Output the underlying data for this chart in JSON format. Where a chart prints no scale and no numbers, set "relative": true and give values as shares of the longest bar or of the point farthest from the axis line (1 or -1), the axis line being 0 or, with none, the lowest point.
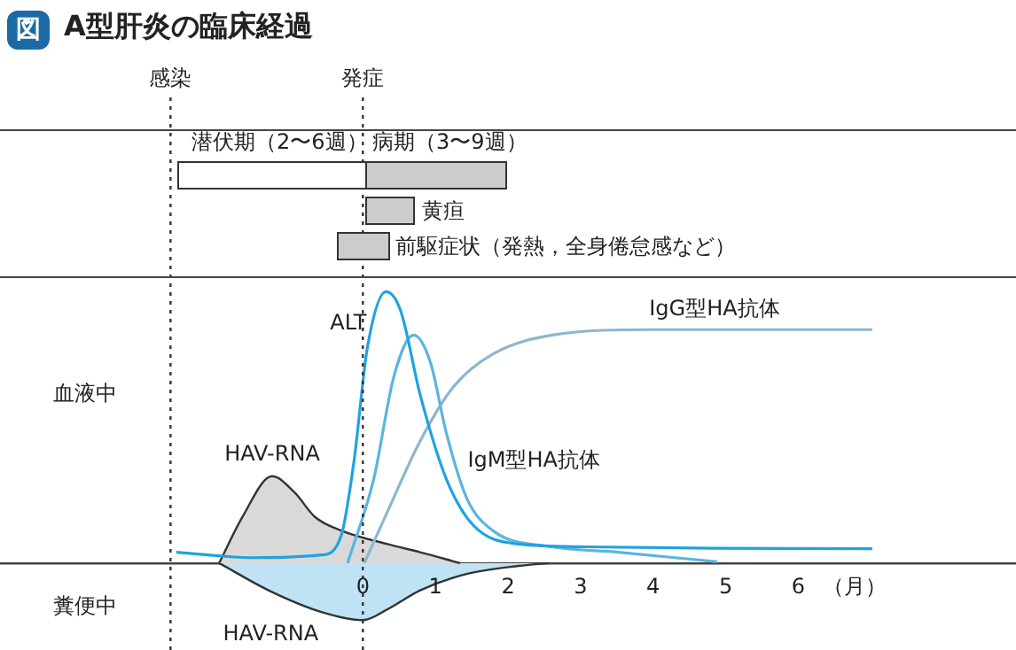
{
  "chart_data": {
    "type": "line",
    "relative": true,
    "title": "A型肝炎の臨床経過",
    "xlabel": "（月）",
    "xlim": [
      -5,
      9
    ],
    "xticks": [
      0,
      1,
      2,
      3,
      4,
      5,
      6
    ],
    "grid": false,
    "legend": false,
    "marker": "none",
    "annotations": [
      "図",
      "潜伏期（2〜6週）",
      "病期（3〜9週）",
      "黄疸",
      "前駆症状（発熱，全身倦怠感など）",
      "血液中",
      "糞便中"
    ],
    "ref_lines": [
      {
        "axis": "x",
        "value": -2.65,
        "label": "感染",
        "line_style": "dotted"
      },
      {
        "axis": "x",
        "value": 0,
        "label": "発症",
        "line_style": "dotted"
      }
    ],
    "series": [
      {
        "name": "HAV-RNA",
        "type": "area",
        "color": "#d9d9d9",
        "x": [
          -1.98,
          -1.66,
          -1.25,
          -0.94,
          -0.66,
          -0.3,
          0.34,
          0.79,
          1.34
        ],
        "values": [
          0,
          0.17,
          0.32,
          0.26,
          0.17,
          0.12,
          0.07,
          0.04,
          0
        ]
      },
      {
        "name": "HAV-RNA",
        "type": "area",
        "color": "#bfe3f5",
        "x": [
          -1.98,
          -1.3,
          -0.57,
          0,
          0.34,
          0.79,
          1.43,
          2.15,
          2.56
        ],
        "values": [
          0,
          -0.1,
          -0.18,
          -0.21,
          -0.17,
          -0.1,
          -0.04,
          -0.01,
          0
        ]
      },
      {
        "name": "ALT",
        "type": "line",
        "color": "#1fa3e0",
        "x": [
          -2.57,
          -1.48,
          -0.57,
          -0.3,
          -0.12,
          0.06,
          0.32,
          0.52,
          0.79,
          1.15,
          1.52,
          2.15,
          3.06,
          4.88,
          7.02
        ],
        "values": [
          0.04,
          0.02,
          0.03,
          0.1,
          0.38,
          0.79,
          1,
          0.93,
          0.62,
          0.31,
          0.14,
          0.07,
          0.06,
          0.055,
          0.053
        ]
      },
      {
        "name": "IgM型HA抗体",
        "type": "line",
        "color": "#5bb4e0",
        "x": [
          -0.21,
          0.15,
          0.43,
          0.7,
          0.93,
          1.15,
          1.43,
          1.79,
          2.61,
          3.52,
          4.88
        ],
        "values": [
          0,
          0.31,
          0.69,
          0.84,
          0.74,
          0.48,
          0.24,
          0.12,
          0.06,
          0.04,
          0.005
        ]
      },
      {
        "name": "IgG型HA抗体",
        "type": "line",
        "color": "#8db6cf",
        "x": [
          0.02,
          0.34,
          0.79,
          1.25,
          1.79,
          2.61,
          3.97,
          7.02
        ],
        "values": [
          0,
          0.19,
          0.45,
          0.65,
          0.77,
          0.84,
          0.86,
          0.86
        ]
      }
    ]
  }
}
